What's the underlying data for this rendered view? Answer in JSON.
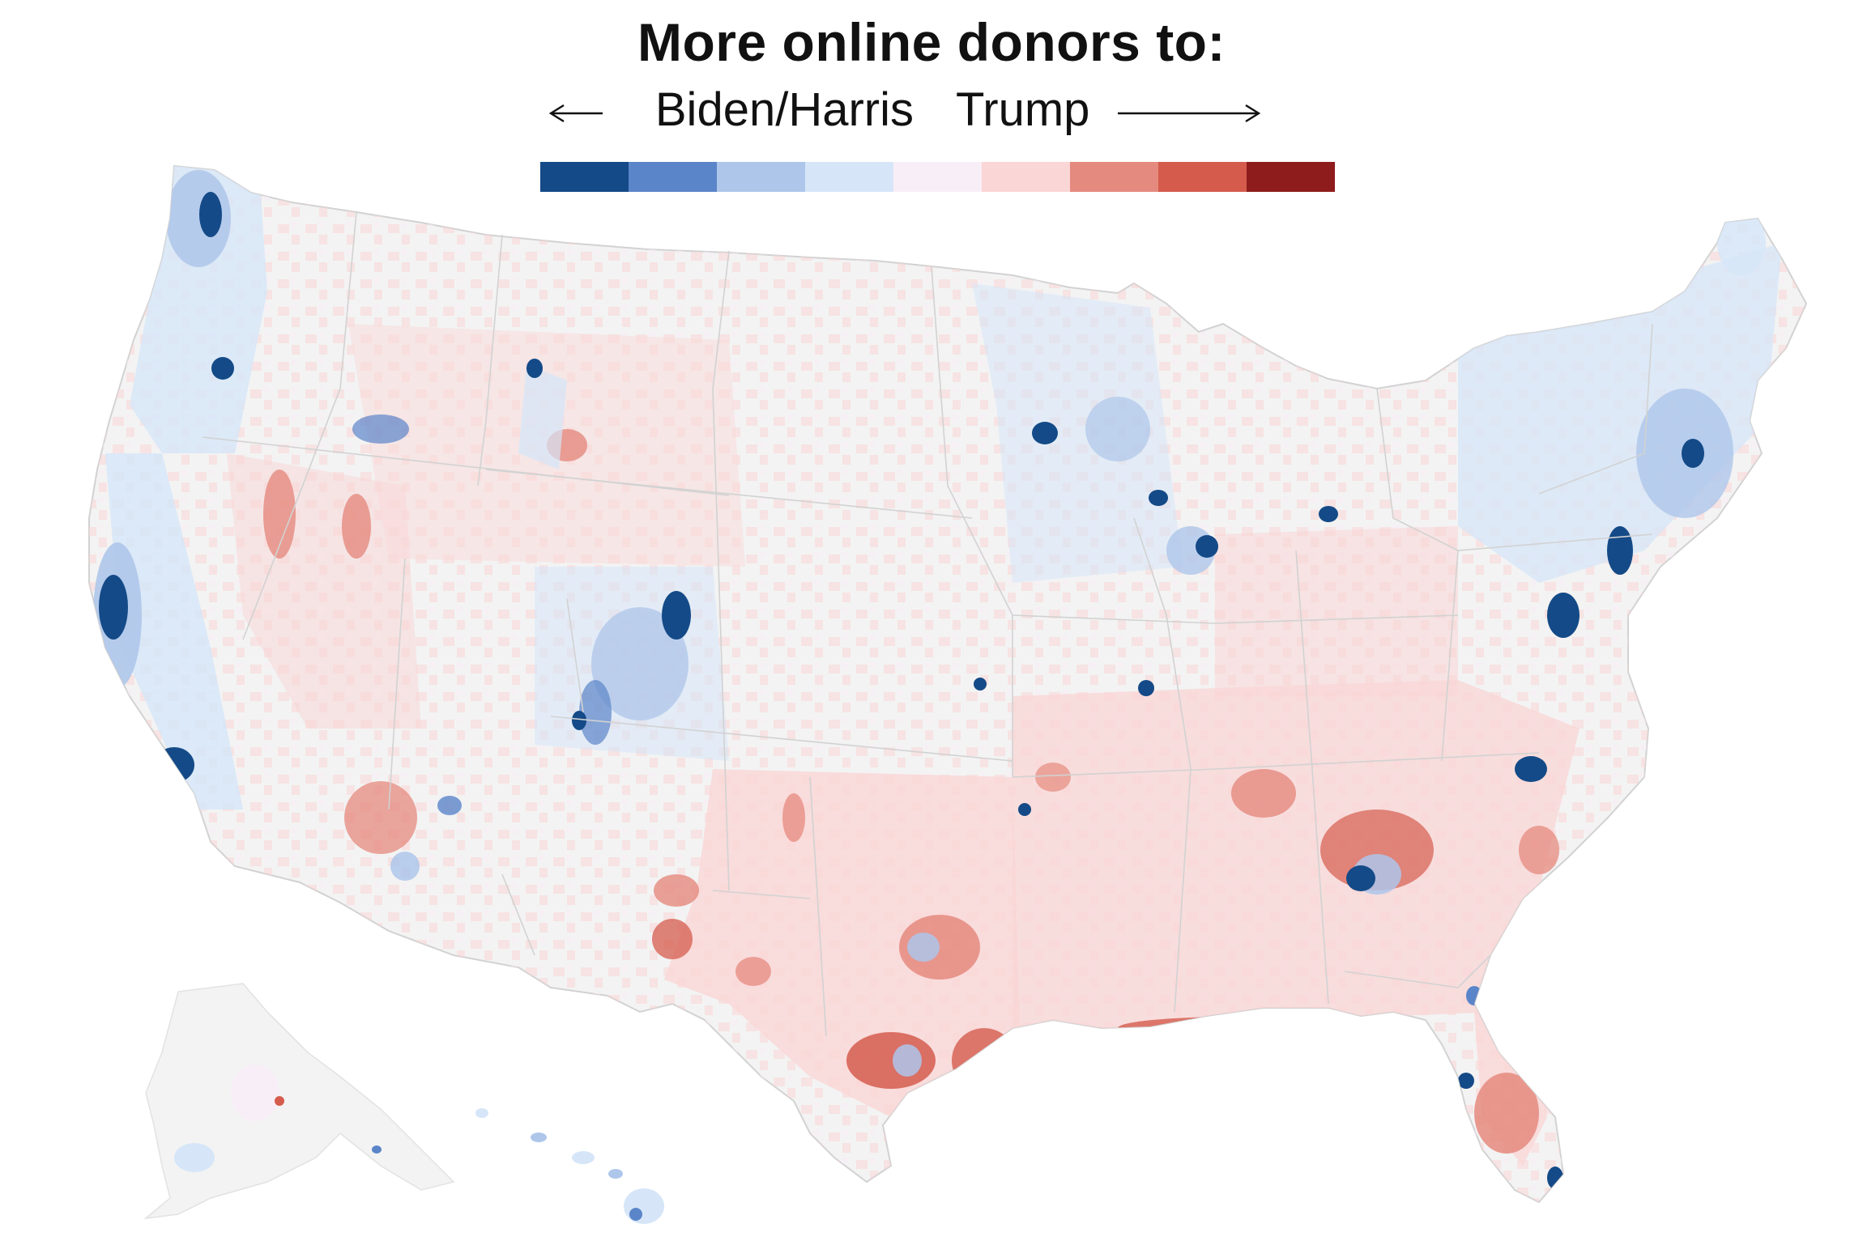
{
  "title": "More online donors to:",
  "legend": {
    "left_label": "Biden/Harris",
    "right_label": "Trump",
    "left_arrow_icon": "arrow-left-icon",
    "right_arrow_icon": "arrow-right-icon",
    "colors": [
      "#144a87",
      "#5b85c9",
      "#aec6ea",
      "#d6e6f8",
      "#f8eef7",
      "#fad6d6",
      "#e58a7e",
      "#d55c4d",
      "#8e1c1c"
    ]
  },
  "map": {
    "regions": [
      "contiguous-us",
      "alaska",
      "hawaii"
    ],
    "base_color": "#f3f3f3",
    "border_color": "#d2d2d2"
  }
}
